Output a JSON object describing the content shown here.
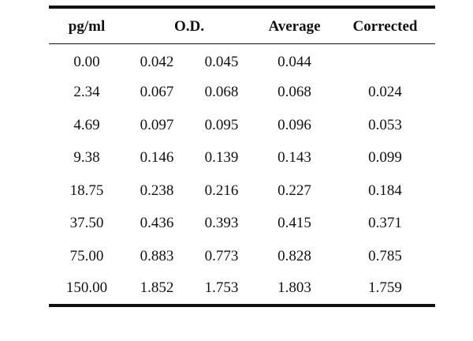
{
  "table": {
    "headers": {
      "concentration": "pg/ml",
      "od": "O.D.",
      "average": "Average",
      "corrected": "Corrected"
    },
    "rows": [
      {
        "conc": "0.00",
        "od1": "0.042",
        "od2": "0.045",
        "avg": "0.044",
        "corrected": ""
      },
      {
        "conc": "2.34",
        "od1": "0.067",
        "od2": "0.068",
        "avg": "0.068",
        "corrected": "0.024"
      },
      {
        "conc": "4.69",
        "od1": "0.097",
        "od2": "0.095",
        "avg": "0.096",
        "corrected": "0.053"
      },
      {
        "conc": "9.38",
        "od1": "0.146",
        "od2": "0.139",
        "avg": "0.143",
        "corrected": "0.099"
      },
      {
        "conc": "18.75",
        "od1": "0.238",
        "od2": "0.216",
        "avg": "0.227",
        "corrected": "0.184"
      },
      {
        "conc": "37.50",
        "od1": "0.436",
        "od2": "0.393",
        "avg": "0.415",
        "corrected": "0.371"
      },
      {
        "conc": "75.00",
        "od1": "0.883",
        "od2": "0.773",
        "avg": "0.828",
        "corrected": "0.785"
      },
      {
        "conc": "150.00",
        "od1": "1.852",
        "od2": "1.753",
        "avg": "1.803",
        "corrected": "1.759"
      }
    ]
  }
}
